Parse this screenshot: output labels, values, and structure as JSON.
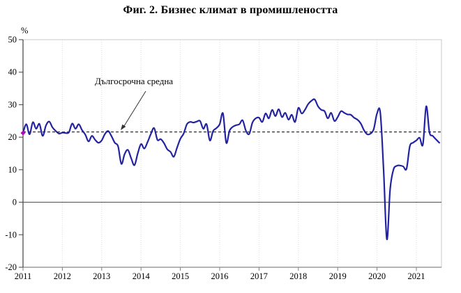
{
  "chart_data": {
    "type": "line",
    "title": "Фиг. 2. Бизнес климат в промишлеността",
    "xlabel": "",
    "ylabel": "%",
    "ylim": [
      -20,
      50
    ],
    "y_tick_step": 10,
    "x_tick_labels": [
      "2011",
      "2012",
      "2013",
      "2014",
      "2015",
      "2016",
      "2017",
      "2018",
      "2019",
      "2020",
      "2021"
    ],
    "x_range": "2011-01 to 2021-08 (monthly)",
    "grid": "vertical-dotted",
    "legend": "none",
    "average_line": {
      "label": "Дългосрочна средна",
      "value": 21.6,
      "style": "dashed-black"
    },
    "series": [
      {
        "name": "Бизнес климат в промишлеността",
        "color": "#2323A0",
        "first_point_marker_color": "#C000C0",
        "values": [
          21.3,
          24.0,
          20.9,
          24.6,
          22.6,
          24.1,
          20.4,
          23.6,
          24.8,
          23.0,
          21.9,
          21.1,
          21.4,
          21.3,
          21.5,
          24.2,
          22.6,
          24.0,
          22.2,
          20.8,
          18.7,
          20.4,
          19.2,
          18.3,
          19.0,
          21.0,
          21.9,
          20.3,
          18.3,
          17.2,
          11.8,
          14.8,
          16.1,
          13.5,
          11.4,
          15.0,
          17.9,
          16.5,
          18.5,
          21.0,
          22.8,
          19.2,
          19.4,
          18.2,
          16.3,
          15.5,
          14.0,
          16.8,
          19.5,
          21.1,
          24.0,
          24.7,
          24.5,
          24.8,
          25.0,
          22.6,
          24.0,
          19.0,
          21.9,
          22.8,
          24.0,
          27.3,
          18.3,
          22.0,
          23.2,
          23.7,
          24.0,
          25.2,
          22.0,
          21.0,
          24.5,
          25.8,
          26.0,
          24.7,
          27.3,
          25.8,
          28.4,
          26.5,
          28.6,
          26.2,
          27.5,
          25.4,
          26.9,
          24.7,
          29.0,
          27.3,
          28.4,
          30.2,
          31.2,
          31.6,
          29.5,
          28.4,
          28.0,
          25.8,
          27.5,
          25.0,
          26.2,
          28.0,
          27.5,
          27.0,
          26.9,
          26.0,
          25.4,
          24.3,
          22.2,
          20.9,
          21.1,
          22.5,
          27.3,
          27.5,
          10.0,
          -11.4,
          4.0,
          10.0,
          11.2,
          11.3,
          11.0,
          10.3,
          17.2,
          18.3,
          19.0,
          19.8,
          17.8,
          29.5,
          21.5,
          20.4,
          19.3,
          18.3
        ]
      }
    ],
    "colors": {
      "series_line": "#2323A0",
      "average_line": "#000000",
      "zero_line": "#595959",
      "plot_border": "#c9c9c9",
      "bottom_axis": "#b3b3b3",
      "y_axis": "#404040",
      "gridline": "#dcdcdc",
      "text": "#000000"
    }
  }
}
